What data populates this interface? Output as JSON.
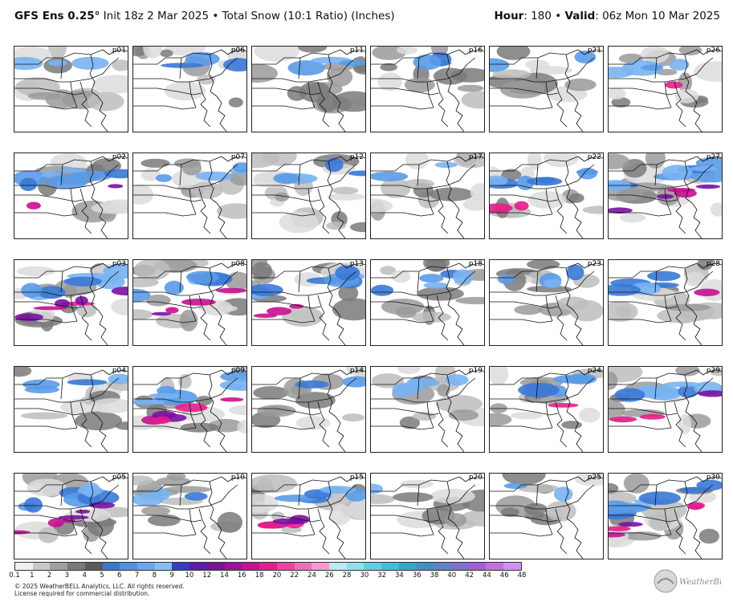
{
  "header": {
    "model": "GFS Ens 0.25",
    "degree": "°",
    "init": " Init 18z 2 Mar 2025",
    "bullet": " • ",
    "product": "Total Snow (10:1 Ratio) (Inches)",
    "hour_label": "Hour",
    "hour_value": ": 180 • ",
    "valid_label": "Valid",
    "valid_value": ": 06z Mon 10 Mar 2025"
  },
  "panels": [
    {
      "id": "p01",
      "fill": 0.45,
      "snow": 0.25,
      "heavy": 0.02
    },
    {
      "id": "p06",
      "fill": 0.4,
      "snow": 0.25,
      "heavy": 0.0
    },
    {
      "id": "p11",
      "fill": 0.55,
      "snow": 0.25,
      "heavy": 0.0
    },
    {
      "id": "p16",
      "fill": 0.35,
      "snow": 0.25,
      "heavy": 0.0
    },
    {
      "id": "p21",
      "fill": 0.25,
      "snow": 0.15,
      "heavy": 0.0
    },
    {
      "id": "p26",
      "fill": 0.4,
      "snow": 0.35,
      "heavy": 0.05
    },
    {
      "id": "p02",
      "fill": 0.45,
      "snow": 0.55,
      "heavy": 0.2
    },
    {
      "id": "p07",
      "fill": 0.45,
      "snow": 0.35,
      "heavy": 0.0
    },
    {
      "id": "p12",
      "fill": 0.75,
      "snow": 0.35,
      "heavy": 0.0
    },
    {
      "id": "p17",
      "fill": 0.45,
      "snow": 0.15,
      "heavy": 0.0
    },
    {
      "id": "p22",
      "fill": 0.45,
      "snow": 0.55,
      "heavy": 0.15
    },
    {
      "id": "p27",
      "fill": 0.6,
      "snow": 0.7,
      "heavy": 0.5
    },
    {
      "id": "p03",
      "fill": 0.55,
      "snow": 0.7,
      "heavy": 0.55
    },
    {
      "id": "p08",
      "fill": 0.55,
      "snow": 0.7,
      "heavy": 0.35
    },
    {
      "id": "p13",
      "fill": 0.45,
      "snow": 0.55,
      "heavy": 0.3
    },
    {
      "id": "p18",
      "fill": 0.45,
      "snow": 0.4,
      "heavy": 0.0
    },
    {
      "id": "p23",
      "fill": 0.35,
      "snow": 0.35,
      "heavy": 0.0
    },
    {
      "id": "p28",
      "fill": 0.55,
      "snow": 0.4,
      "heavy": 0.05
    },
    {
      "id": "p04",
      "fill": 0.45,
      "snow": 0.3,
      "heavy": 0.0
    },
    {
      "id": "p09",
      "fill": 0.55,
      "snow": 0.7,
      "heavy": 0.6
    },
    {
      "id": "p14",
      "fill": 0.4,
      "snow": 0.2,
      "heavy": 0.0
    },
    {
      "id": "p19",
      "fill": 0.4,
      "snow": 0.35,
      "heavy": 0.0
    },
    {
      "id": "p24",
      "fill": 0.45,
      "snow": 0.45,
      "heavy": 0.1
    },
    {
      "id": "p29",
      "fill": 0.45,
      "snow": 0.55,
      "heavy": 0.3
    },
    {
      "id": "p05",
      "fill": 0.55,
      "snow": 0.7,
      "heavy": 0.6
    },
    {
      "id": "p10",
      "fill": 0.35,
      "snow": 0.25,
      "heavy": 0.0
    },
    {
      "id": "p15",
      "fill": 0.55,
      "snow": 0.6,
      "heavy": 0.45
    },
    {
      "id": "p20",
      "fill": 0.35,
      "snow": 0.1,
      "heavy": 0.0
    },
    {
      "id": "p25",
      "fill": 0.35,
      "snow": 0.15,
      "heavy": 0.0
    },
    {
      "id": "p30",
      "fill": 0.55,
      "snow": 0.7,
      "heavy": 0.45
    }
  ],
  "legend": {
    "ticks": [
      "0.1",
      "1",
      "2",
      "3",
      "4",
      "5",
      "6",
      "7",
      "8",
      "9",
      "10",
      "12",
      "14",
      "16",
      "18",
      "20",
      "22",
      "24",
      "26",
      "28",
      "30",
      "32",
      "34",
      "36",
      "38",
      "40",
      "42",
      "44",
      "46",
      "48"
    ],
    "colors": [
      "#f0f0f0",
      "#c8c8c8",
      "#a0a0a0",
      "#7a7a7a",
      "#5a5a5a",
      "#3a78d6",
      "#4f8fe8",
      "#6aa6f0",
      "#86bdf5",
      "#3a3ac8",
      "#5a1fb0",
      "#7a10a0",
      "#a0109a",
      "#c81090",
      "#e81c8c",
      "#f040a0",
      "#f26cb8",
      "#f59ad0",
      "#c0e8f0",
      "#90e0ea",
      "#60d0e0",
      "#40c0d8",
      "#30a8c8",
      "#4090c0",
      "#6080c8",
      "#8070d0",
      "#a060d8",
      "#c070e0",
      "#d090f0"
    ]
  },
  "footer": {
    "line1": "© 2025 WeatherBELL Analytics, LLC. All rights reserved.",
    "line2": "License required for commercial distribution."
  },
  "logo": {
    "text": "WeatherBELL"
  }
}
